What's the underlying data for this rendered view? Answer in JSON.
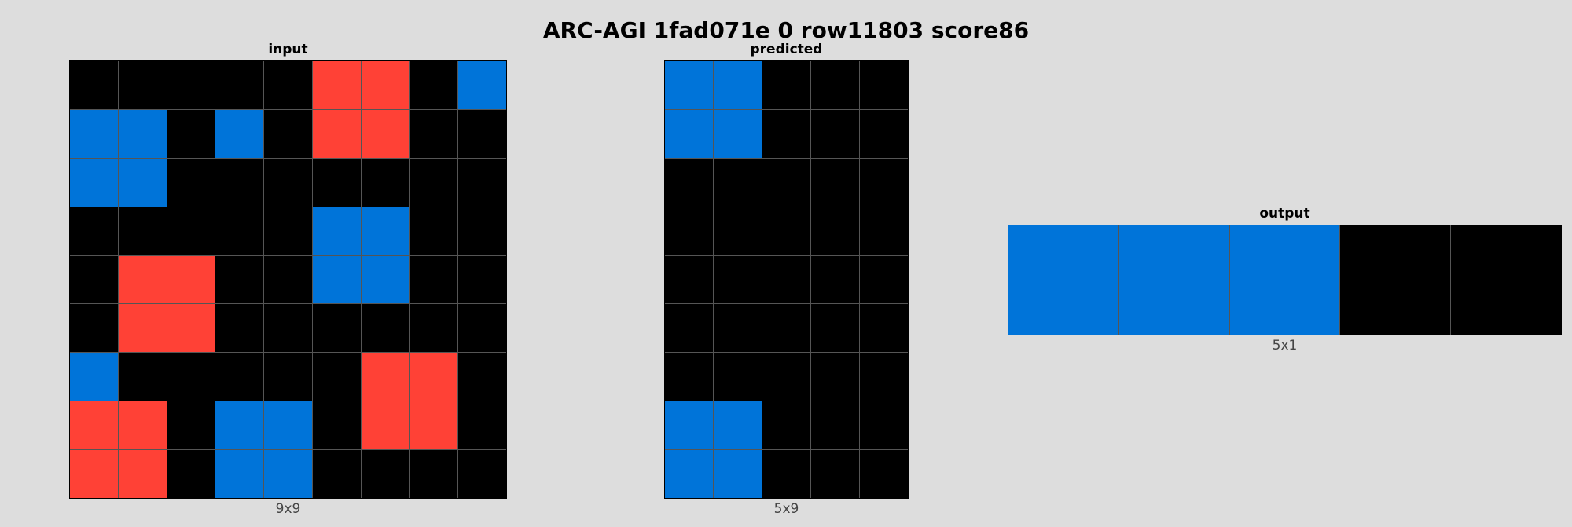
{
  "title": "ARC-AGI 1fad071e 0 row11803 score86",
  "palette": {
    "0": "#000000",
    "1": "#0074d9",
    "2": "#ff4136"
  },
  "panels": [
    {
      "id": "input",
      "label": "input",
      "caption": "9x9",
      "rows": [
        [
          0,
          0,
          0,
          0,
          0,
          2,
          2,
          0,
          1
        ],
        [
          1,
          1,
          0,
          1,
          0,
          2,
          2,
          0,
          0
        ],
        [
          1,
          1,
          0,
          0,
          0,
          0,
          0,
          0,
          0
        ],
        [
          0,
          0,
          0,
          0,
          0,
          1,
          1,
          0,
          0
        ],
        [
          0,
          2,
          2,
          0,
          0,
          1,
          1,
          0,
          0
        ],
        [
          0,
          2,
          2,
          0,
          0,
          0,
          0,
          0,
          0
        ],
        [
          1,
          0,
          0,
          0,
          0,
          0,
          2,
          2,
          0
        ],
        [
          2,
          2,
          0,
          1,
          1,
          0,
          2,
          2,
          0
        ],
        [
          2,
          2,
          0,
          1,
          1,
          0,
          0,
          0,
          0
        ]
      ]
    },
    {
      "id": "predicted",
      "label": "predicted",
      "caption": "5x9",
      "rows": [
        [
          1,
          1,
          0,
          0,
          0
        ],
        [
          1,
          1,
          0,
          0,
          0
        ],
        [
          0,
          0,
          0,
          0,
          0
        ],
        [
          0,
          0,
          0,
          0,
          0
        ],
        [
          0,
          0,
          0,
          0,
          0
        ],
        [
          0,
          0,
          0,
          0,
          0
        ],
        [
          0,
          0,
          0,
          0,
          0
        ],
        [
          1,
          1,
          0,
          0,
          0
        ],
        [
          1,
          1,
          0,
          0,
          0
        ]
      ]
    },
    {
      "id": "output",
      "label": "output",
      "caption": "5x1",
      "rows": [
        [
          1,
          1,
          1,
          0,
          0
        ]
      ]
    }
  ]
}
